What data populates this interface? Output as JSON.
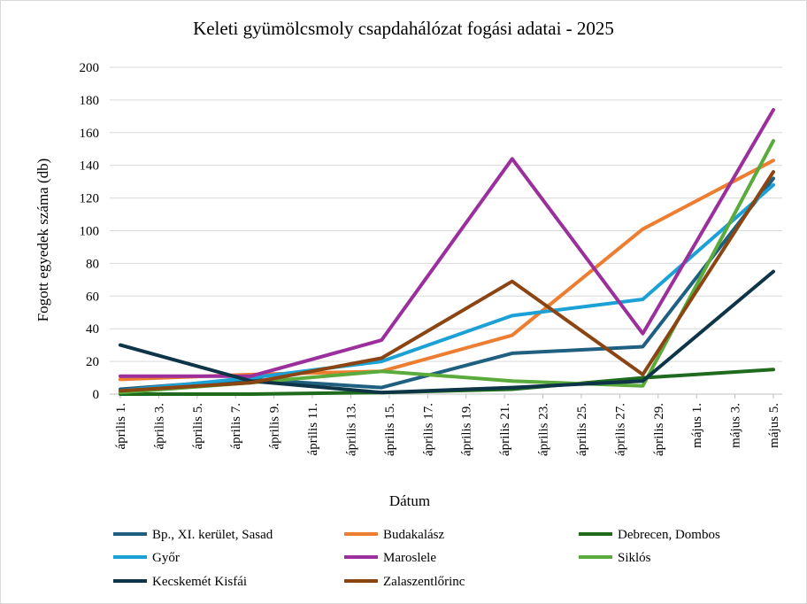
{
  "chart_data": {
    "type": "line",
    "title": "Keleti gyümölcsmoly csapdahálózat fogási adatai - 2025",
    "xlabel": "Dátum",
    "ylabel": "Fogott egyedek száma (db)",
    "ylim": [
      0,
      200
    ],
    "yticks": [
      "0",
      "20",
      "40",
      "60",
      "80",
      "100",
      "120",
      "140",
      "160",
      "180",
      "200"
    ],
    "x_ticks": [
      "április 1.",
      "április 3.",
      "április 5.",
      "április 7.",
      "április 9.",
      "április 11.",
      "április 13.",
      "április 15.",
      "április 17.",
      "április 19.",
      "április 21.",
      "április 23.",
      "április 25.",
      "április 27.",
      "április 29.",
      "május 1.",
      "május 3.",
      "május 5."
    ],
    "x_start": "2025-04-01",
    "x_end": "2025-05-06",
    "grid": true,
    "legend_position": "bottom",
    "series": [
      {
        "name": "Bp., XI. kerület, Sasad",
        "color": "#1f5f80",
        "points": [
          [
            "2025-04-01",
            3
          ],
          [
            "2025-04-08",
            9
          ],
          [
            "2025-04-15",
            4
          ],
          [
            "2025-04-22",
            25
          ],
          [
            "2025-04-29",
            29
          ],
          [
            "2025-05-06",
            132
          ]
        ]
      },
      {
        "name": "Budakalász",
        "color": "#ed7d31",
        "points": [
          [
            "2025-04-01",
            9
          ],
          [
            "2025-04-08",
            12
          ],
          [
            "2025-04-15",
            14
          ],
          [
            "2025-04-22",
            36
          ],
          [
            "2025-04-29",
            101
          ],
          [
            "2025-05-06",
            143
          ]
        ]
      },
      {
        "name": "Debrecen, Dombos",
        "color": "#1e6b1e",
        "points": [
          [
            "2025-04-01",
            0
          ],
          [
            "2025-04-08",
            0
          ],
          [
            "2025-04-15",
            1
          ],
          [
            "2025-04-22",
            3
          ],
          [
            "2025-04-29",
            10
          ],
          [
            "2025-05-06",
            15
          ]
        ]
      },
      {
        "name": "Győr",
        "color": "#1ba1d6",
        "points": [
          [
            "2025-04-01",
            2
          ],
          [
            "2025-04-08",
            10
          ],
          [
            "2025-04-15",
            20
          ],
          [
            "2025-04-22",
            48
          ],
          [
            "2025-04-29",
            58
          ],
          [
            "2025-05-06",
            128
          ]
        ]
      },
      {
        "name": "Maroslele",
        "color": "#9b2f9b",
        "points": [
          [
            "2025-04-01",
            11
          ],
          [
            "2025-04-08",
            11
          ],
          [
            "2025-04-15",
            33
          ],
          [
            "2025-04-22",
            144
          ],
          [
            "2025-04-29",
            37
          ],
          [
            "2025-05-06",
            174
          ]
        ]
      },
      {
        "name": "Siklós",
        "color": "#5aab3c",
        "points": [
          [
            "2025-04-01",
            1
          ],
          [
            "2025-04-08",
            7
          ],
          [
            "2025-04-15",
            14
          ],
          [
            "2025-04-22",
            8
          ],
          [
            "2025-04-29",
            5
          ],
          [
            "2025-05-06",
            155
          ]
        ]
      },
      {
        "name": "Kecskemét Kisfái",
        "color": "#0e3447",
        "points": [
          [
            "2025-04-01",
            30
          ],
          [
            "2025-04-08",
            8
          ],
          [
            "2025-04-15",
            1
          ],
          [
            "2025-04-22",
            4
          ],
          [
            "2025-04-29",
            8
          ],
          [
            "2025-05-06",
            75
          ]
        ]
      },
      {
        "name": "Zalaszentlőrinc",
        "color": "#8b4513",
        "points": [
          [
            "2025-04-01",
            2
          ],
          [
            "2025-04-08",
            7
          ],
          [
            "2025-04-15",
            22
          ],
          [
            "2025-04-22",
            69
          ],
          [
            "2025-04-29",
            12
          ],
          [
            "2025-05-06",
            136
          ]
        ]
      }
    ]
  }
}
